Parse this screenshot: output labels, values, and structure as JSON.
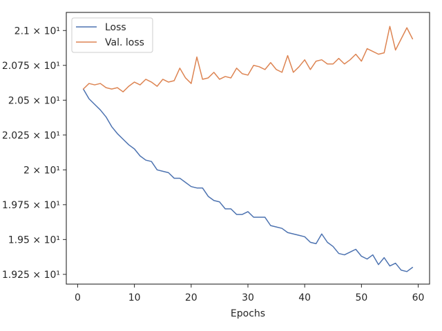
{
  "chart_data": {
    "type": "line",
    "title": "",
    "xlabel": "Epochs",
    "ylabel": "",
    "xlim": [
      -2,
      62
    ],
    "ylim": [
      19.18,
      21.13
    ],
    "xticks": [
      {
        "value": 0,
        "label": "0"
      },
      {
        "value": 10,
        "label": "10"
      },
      {
        "value": 20,
        "label": "20"
      },
      {
        "value": 30,
        "label": "30"
      },
      {
        "value": 40,
        "label": "40"
      },
      {
        "value": 50,
        "label": "50"
      },
      {
        "value": 60,
        "label": "60"
      }
    ],
    "yticks": [
      {
        "value": 19.25,
        "label": "1.925 × 10¹"
      },
      {
        "value": 19.5,
        "label": "1.95 × 10¹"
      },
      {
        "value": 19.75,
        "label": "1.975 × 10¹"
      },
      {
        "value": 20.0,
        "label": "2 × 10¹"
      },
      {
        "value": 20.25,
        "label": "2.025 × 10¹"
      },
      {
        "value": 20.5,
        "label": "2.05 × 10¹"
      },
      {
        "value": 20.75,
        "label": "2.075 × 10¹"
      },
      {
        "value": 21.0,
        "label": "2.1 × 10¹"
      }
    ],
    "grid": false,
    "legend_position": "top-left",
    "x": [
      1,
      2,
      3,
      4,
      5,
      6,
      7,
      8,
      9,
      10,
      11,
      12,
      13,
      14,
      15,
      16,
      17,
      18,
      19,
      20,
      21,
      22,
      23,
      24,
      25,
      26,
      27,
      28,
      29,
      30,
      31,
      32,
      33,
      34,
      35,
      36,
      37,
      38,
      39,
      40,
      41,
      42,
      43,
      44,
      45,
      46,
      47,
      48,
      49,
      50,
      51,
      52,
      53,
      54,
      55,
      56,
      57,
      58,
      59
    ],
    "series": [
      {
        "name": "Loss",
        "color": "#4c72b0",
        "values": [
          20.58,
          20.51,
          20.47,
          20.43,
          20.38,
          20.31,
          20.26,
          20.22,
          20.18,
          20.15,
          20.1,
          20.07,
          20.06,
          20.0,
          19.99,
          19.98,
          19.94,
          19.94,
          19.91,
          19.88,
          19.87,
          19.87,
          19.81,
          19.78,
          19.77,
          19.72,
          19.72,
          19.68,
          19.68,
          19.7,
          19.66,
          19.66,
          19.66,
          19.6,
          19.59,
          19.58,
          19.55,
          19.54,
          19.53,
          19.52,
          19.48,
          19.47,
          19.54,
          19.48,
          19.45,
          19.4,
          19.39,
          19.41,
          19.43,
          19.38,
          19.36,
          19.39,
          19.32,
          19.37,
          19.31,
          19.33,
          19.28,
          19.27,
          19.3
        ]
      },
      {
        "name": "Val. loss",
        "color": "#dd8452",
        "values": [
          20.58,
          20.62,
          20.61,
          20.62,
          20.59,
          20.58,
          20.59,
          20.56,
          20.6,
          20.63,
          20.61,
          20.65,
          20.63,
          20.6,
          20.65,
          20.63,
          20.64,
          20.73,
          20.66,
          20.62,
          20.81,
          20.65,
          20.66,
          20.7,
          20.65,
          20.67,
          20.66,
          20.73,
          20.69,
          20.68,
          20.75,
          20.74,
          20.72,
          20.77,
          20.72,
          20.7,
          20.82,
          20.7,
          20.74,
          20.79,
          20.72,
          20.78,
          20.79,
          20.76,
          20.76,
          20.8,
          20.76,
          20.79,
          20.83,
          20.78,
          20.87,
          20.85,
          20.83,
          20.84,
          21.03,
          20.86,
          20.94,
          21.02,
          20.94
        ]
      }
    ]
  }
}
